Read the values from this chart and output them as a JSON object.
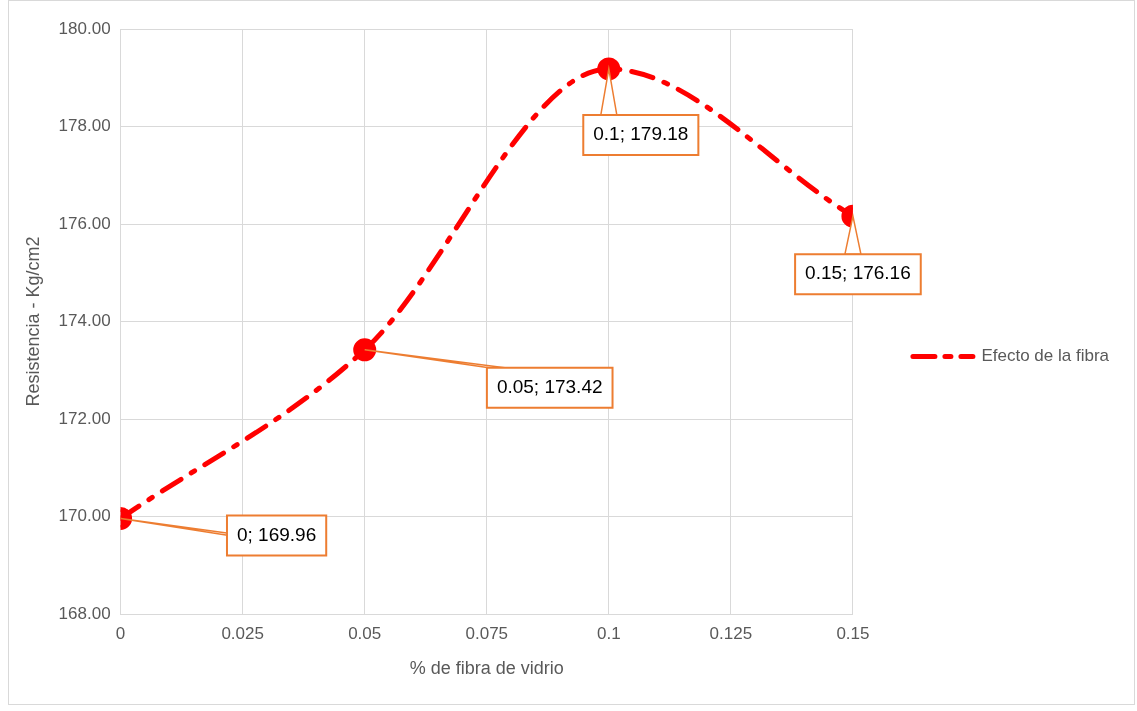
{
  "chart_data": {
    "type": "line",
    "xlabel": "% de fibra de vidrio",
    "ylabel": "Resistencia - Kg/cm2",
    "x": [
      0,
      0.05,
      0.1,
      0.15
    ],
    "series": [
      {
        "name": "Efecto de la fibra",
        "color": "#ff0000",
        "values": [
          169.96,
          173.42,
          179.18,
          176.16
        ]
      }
    ],
    "xlim": [
      0,
      0.15
    ],
    "xticks": [
      0,
      0.025,
      0.05,
      0.075,
      0.1,
      0.125,
      0.15
    ],
    "ylim": [
      168,
      180
    ],
    "yticks": [
      {
        "value": 168,
        "label": "168.00"
      },
      {
        "value": 170,
        "label": "170.00"
      },
      {
        "value": 172,
        "label": "172.00"
      },
      {
        "value": 174,
        "label": "174.00"
      },
      {
        "value": 176,
        "label": "176.00"
      },
      {
        "value": 178,
        "label": "178.00"
      },
      {
        "value": 180,
        "label": "180.00"
      }
    ],
    "grid": true,
    "legend": "right",
    "marker": "circle",
    "line_style": "dashed",
    "annotations": [
      {
        "text": "0; 169.96",
        "x": 0,
        "y": 169.96
      },
      {
        "text": "0.05; 173.42",
        "x": 0.05,
        "y": 173.42
      },
      {
        "text": "0.1; 179.18",
        "x": 0.1,
        "y": 179.18
      },
      {
        "text": "0.15; 176.16",
        "x": 0.15,
        "y": 176.16
      }
    ]
  }
}
